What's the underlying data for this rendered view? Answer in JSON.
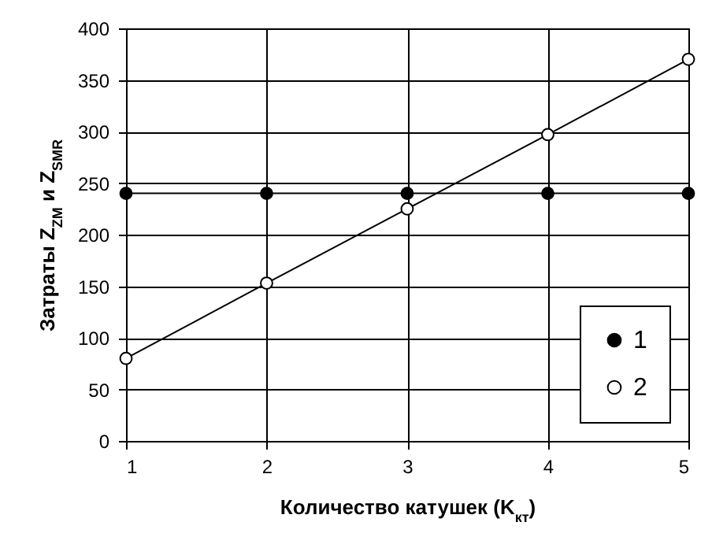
{
  "chart_data": {
    "type": "line",
    "xlabel": "Количество катушек (K$_{кт}$)",
    "ylabel": "Затраты Z$_{ZM}$ и Z$_{SMR}$",
    "x": [
      1,
      2,
      3,
      4,
      5
    ],
    "series": [
      {
        "name": "1",
        "color": "#000000",
        "values": [
          240,
          240,
          240,
          240,
          240
        ]
      },
      {
        "name": "2",
        "color": "#000000",
        "values": [
          80,
          153,
          225,
          297,
          370
        ]
      }
    ],
    "xlim": [
      1,
      5
    ],
    "xticks": [
      1,
      2,
      3,
      4,
      5
    ],
    "ylim": [
      0,
      400
    ],
    "yticks": [
      0,
      50,
      100,
      150,
      200,
      250,
      300,
      350,
      400
    ],
    "grid": true,
    "legend": "bottom right",
    "marker": "circle",
    "line_style": "solid"
  }
}
